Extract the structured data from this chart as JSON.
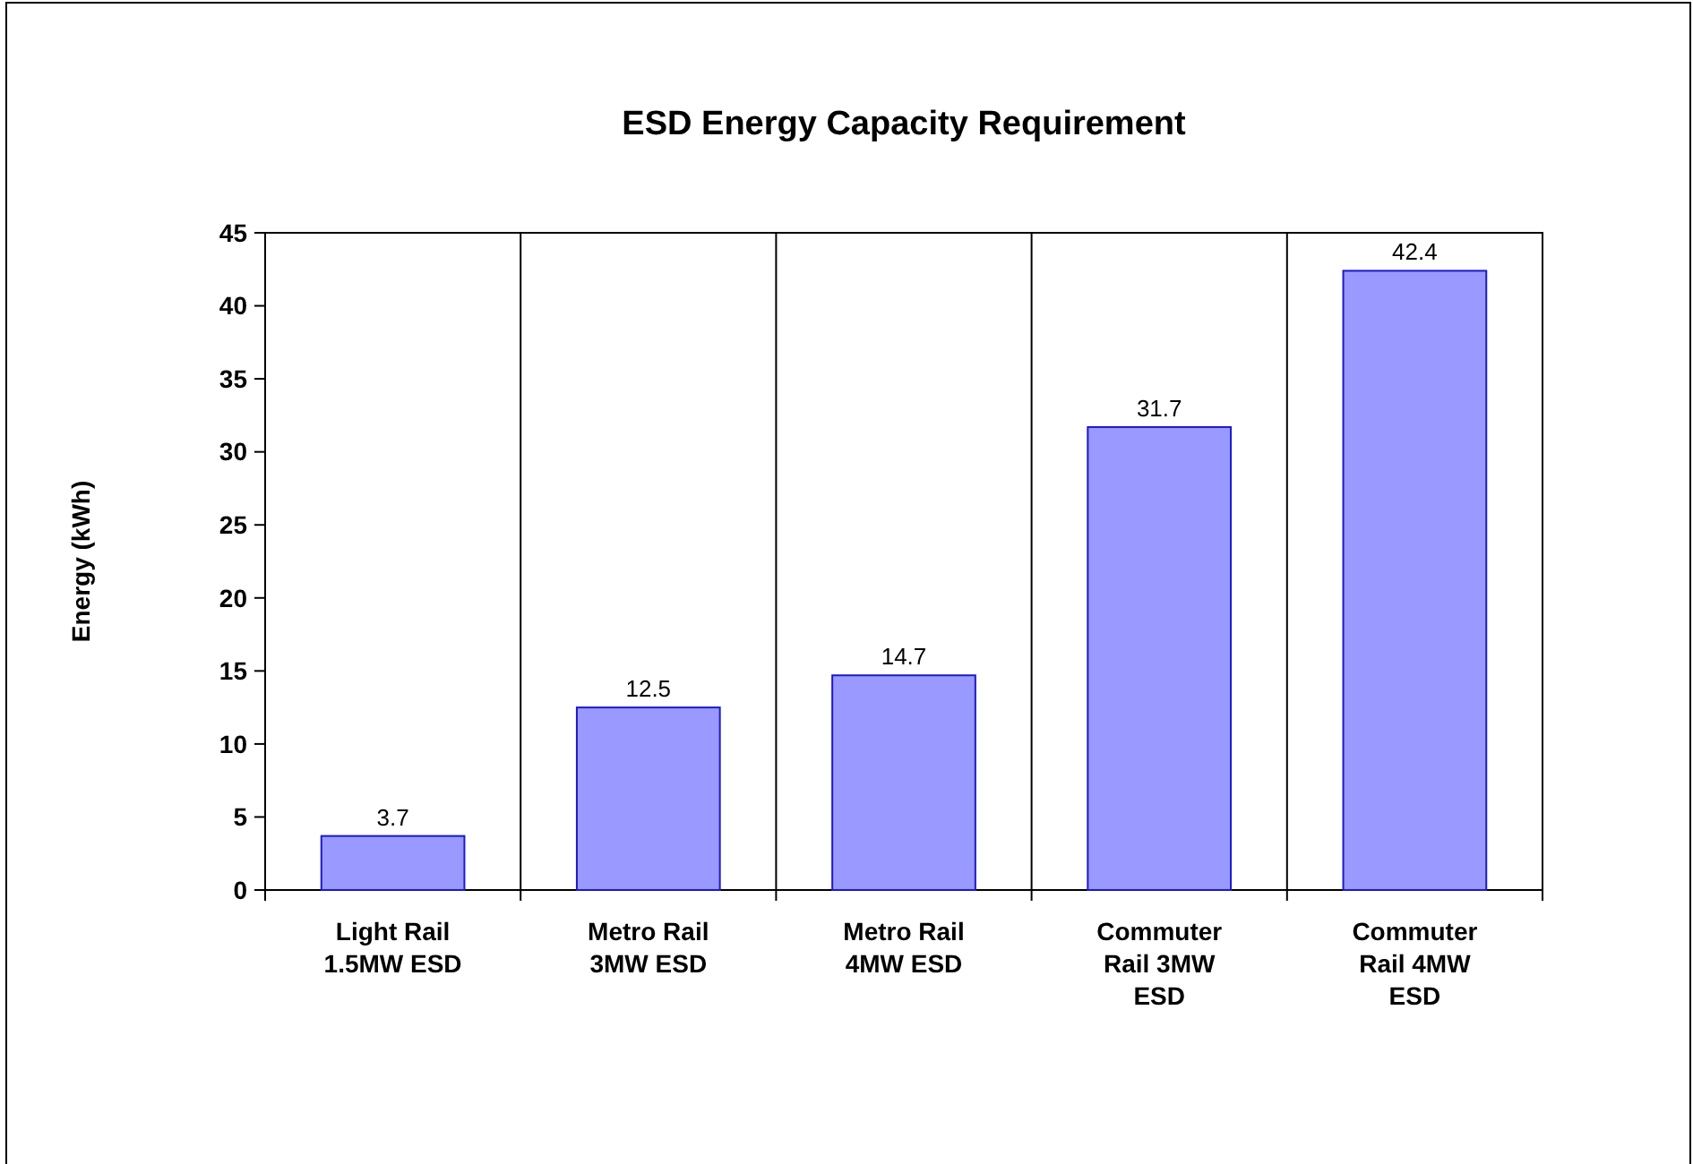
{
  "chart_data": {
    "type": "bar",
    "title": "ESD Energy Capacity Requirement",
    "ylabel": "Energy (kWh)",
    "categories": [
      "Light Rail 1.5MW ESD",
      "Metro Rail 3MW ESD",
      "Metro Rail 4MW ESD",
      "Commuter Rail 3MW ESD",
      "Commuter Rail 4MW ESD"
    ],
    "values": [
      3.7,
      12.5,
      14.7,
      31.7,
      42.4
    ],
    "color": "#9999ff",
    "ylim": [
      0,
      45
    ],
    "yticks": [
      0,
      5,
      10,
      15,
      20,
      25,
      30,
      35,
      40,
      45
    ],
    "grid": "x",
    "data_labels": true
  }
}
